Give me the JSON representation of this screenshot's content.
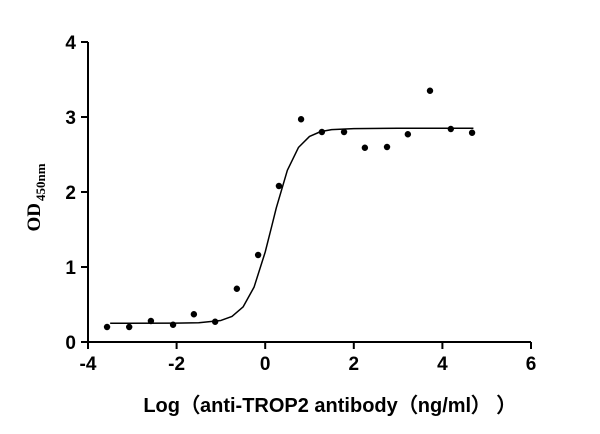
{
  "chart_data": {
    "type": "scatter",
    "xlabel": "Log（anti-TROP2 antibody（ng/ml） ）",
    "ylabel": "OD",
    "ylabel_subscript": "450nm",
    "xlim": [
      -4,
      6
    ],
    "xticks": [
      -4,
      -2,
      0,
      2,
      4,
      6
    ],
    "ylim": [
      0,
      4
    ],
    "yticks": [
      0,
      1,
      2,
      3,
      4
    ],
    "series": [
      {
        "type": "scatter",
        "color": "#000000",
        "x": [
          -3.57,
          -3.07,
          -2.58,
          -2.08,
          -1.61,
          -1.13,
          -0.64,
          -0.16,
          0.31,
          0.81,
          1.28,
          1.78,
          2.25,
          2.75,
          3.22,
          3.72,
          4.19,
          4.67
        ],
        "values": [
          0.2,
          0.2,
          0.28,
          0.23,
          0.37,
          0.27,
          0.71,
          1.16,
          2.08,
          2.97,
          2.8,
          2.8,
          2.59,
          2.6,
          2.77,
          3.35,
          2.84,
          2.79
        ]
      },
      {
        "type": "line",
        "color": "#000000",
        "x": [
          -3.5,
          -2,
          -1.5,
          -1,
          -0.75,
          -0.5,
          -0.25,
          0,
          0.15,
          0.25,
          0.5,
          0.75,
          1,
          1.25,
          1.5,
          2,
          3,
          4.7
        ],
        "values": [
          0.25,
          0.251,
          0.256,
          0.287,
          0.341,
          0.467,
          0.734,
          1.199,
          1.55,
          1.788,
          2.289,
          2.593,
          2.741,
          2.805,
          2.832,
          2.845,
          2.85,
          2.85
        ]
      }
    ]
  }
}
